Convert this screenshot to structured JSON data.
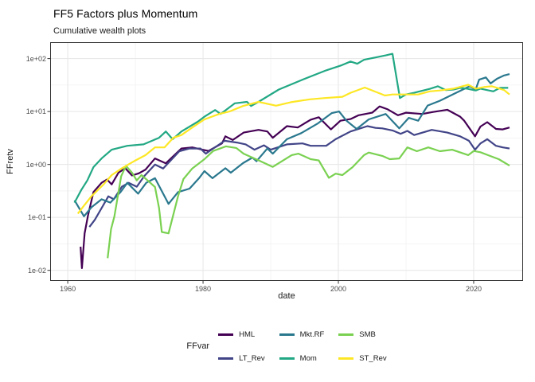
{
  "header": {
    "title": "FF5 Factors plus Momentum",
    "subtitle": "Cumulative wealth plots"
  },
  "chart_data": {
    "type": "line",
    "title": "FF5 Factors plus Momentum",
    "subtitle": "Cumulative wealth plots",
    "xlabel": "date",
    "ylabel": "FFretv",
    "legend_title": "FFvar",
    "legend_position": "bottom",
    "grid": true,
    "x_axis": {
      "range": [
        1957.4,
        2027.3
      ],
      "major_ticks": [
        1960,
        1980,
        2000,
        2020
      ],
      "minor_ticks": [
        1970,
        1990,
        2010
      ],
      "tick_labels": [
        "1960",
        "1980",
        "2000",
        "2020"
      ]
    },
    "y_axis": {
      "scale": "log10",
      "range_log10": [
        -2.2,
        2.31
      ],
      "major_ticks": [
        0.01,
        0.1,
        1,
        10,
        100
      ],
      "minor_ticks": [
        0.0316,
        0.316,
        3.162,
        31.62
      ],
      "tick_labels": [
        "1e-02",
        "1e-01",
        "1e+00",
        "1e+01",
        "1e+02"
      ]
    },
    "style": {
      "panel_border": "#333333",
      "grid_major": "#e6e6e6",
      "grid_minor": "#f2f2f2",
      "tick_mark": "#333333",
      "line_width": 2.2
    },
    "series": [
      {
        "name": "HML",
        "color": "#440154",
        "points": [
          [
            1961.9,
            0.028
          ],
          [
            1962.1,
            0.011
          ],
          [
            1962.5,
            0.05
          ],
          [
            1963.0,
            0.11
          ],
          [
            1963.8,
            0.3
          ],
          [
            1965.0,
            0.45
          ],
          [
            1965.8,
            0.52
          ],
          [
            1966.5,
            0.42
          ],
          [
            1967.5,
            0.7
          ],
          [
            1968.5,
            0.85
          ],
          [
            1969.5,
            0.62
          ],
          [
            1970.5,
            0.68
          ],
          [
            1971.5,
            0.8
          ],
          [
            1972.9,
            1.3
          ],
          [
            1974.5,
            1.05
          ],
          [
            1976.8,
            2.0
          ],
          [
            1978.4,
            2.1
          ],
          [
            1980.8,
            1.8
          ],
          [
            1982.8,
            2.5
          ],
          [
            1983.3,
            3.4
          ],
          [
            1984.4,
            2.9
          ],
          [
            1986.0,
            4.0
          ],
          [
            1988.2,
            4.5
          ],
          [
            1989.5,
            4.2
          ],
          [
            1990.3,
            3.2
          ],
          [
            1992.4,
            5.3
          ],
          [
            1994.0,
            5.0
          ],
          [
            1995.9,
            7.0
          ],
          [
            1997.1,
            7.8
          ],
          [
            1998.9,
            4.6
          ],
          [
            2000.3,
            6.7
          ],
          [
            2001.8,
            7.2
          ],
          [
            2003.0,
            8.5
          ],
          [
            2005.0,
            9.5
          ],
          [
            2006.1,
            12.5
          ],
          [
            2007.3,
            11.0
          ],
          [
            2008.8,
            8.5
          ],
          [
            2010.0,
            9.5
          ],
          [
            2012.4,
            9.0
          ],
          [
            2014.0,
            9.8
          ],
          [
            2016.1,
            10.8
          ],
          [
            2018.0,
            8.0
          ],
          [
            2018.6,
            6.7
          ],
          [
            2020.2,
            3.4
          ],
          [
            2021.0,
            5.2
          ],
          [
            2022.0,
            6.3
          ],
          [
            2023.3,
            4.7
          ],
          [
            2024.3,
            4.6
          ],
          [
            2025.3,
            5.0
          ]
        ]
      },
      {
        "name": "LT_Rev",
        "color": "#414487",
        "points": [
          [
            1963.2,
            0.066
          ],
          [
            1964.0,
            0.09
          ],
          [
            1965.0,
            0.15
          ],
          [
            1966.0,
            0.25
          ],
          [
            1966.8,
            0.22
          ],
          [
            1968.0,
            0.38
          ],
          [
            1969.0,
            0.45
          ],
          [
            1970.2,
            0.38
          ],
          [
            1971.3,
            0.6
          ],
          [
            1972.9,
            1.0
          ],
          [
            1974.1,
            0.84
          ],
          [
            1976.5,
            1.78
          ],
          [
            1978.0,
            2.0
          ],
          [
            1979.6,
            2.0
          ],
          [
            1980.4,
            1.6
          ],
          [
            1981.5,
            2.0
          ],
          [
            1983.2,
            2.8
          ],
          [
            1985.0,
            2.6
          ],
          [
            1986.3,
            2.4
          ],
          [
            1987.6,
            1.9
          ],
          [
            1989.0,
            2.3
          ],
          [
            1990.0,
            1.9
          ],
          [
            1991.5,
            2.2
          ],
          [
            1992.4,
            2.4
          ],
          [
            1994.7,
            2.5
          ],
          [
            1995.9,
            2.25
          ],
          [
            1998.2,
            2.25
          ],
          [
            1999.6,
            3.0
          ],
          [
            2001.8,
            4.2
          ],
          [
            2004.3,
            5.3
          ],
          [
            2005.5,
            4.9
          ],
          [
            2006.5,
            4.8
          ],
          [
            2008.0,
            4.4
          ],
          [
            2009.2,
            3.8
          ],
          [
            2010.2,
            4.3
          ],
          [
            2011.2,
            3.6
          ],
          [
            2013.8,
            4.5
          ],
          [
            2016.1,
            4.0
          ],
          [
            2018.0,
            3.4
          ],
          [
            2019.3,
            2.8
          ],
          [
            2020.2,
            1.9
          ],
          [
            2021.0,
            2.5
          ],
          [
            2022.0,
            3.0
          ],
          [
            2023.3,
            2.25
          ],
          [
            2024.3,
            2.1
          ],
          [
            2025.3,
            2.0
          ]
        ]
      },
      {
        "name": "Mkt.RF",
        "color": "#2a788e",
        "points": [
          [
            1961.0,
            0.21
          ],
          [
            1962.4,
            0.105
          ],
          [
            1963.5,
            0.155
          ],
          [
            1965.0,
            0.22
          ],
          [
            1966.3,
            0.19
          ],
          [
            1967.8,
            0.3
          ],
          [
            1968.8,
            0.45
          ],
          [
            1970.4,
            0.28
          ],
          [
            1971.6,
            0.45
          ],
          [
            1972.9,
            0.55
          ],
          [
            1974.9,
            0.18
          ],
          [
            1976.3,
            0.3
          ],
          [
            1978.0,
            0.35
          ],
          [
            1979.4,
            0.55
          ],
          [
            1980.2,
            0.75
          ],
          [
            1981.4,
            0.55
          ],
          [
            1983.3,
            0.85
          ],
          [
            1984.1,
            0.7
          ],
          [
            1985.9,
            1.06
          ],
          [
            1987.3,
            1.35
          ],
          [
            1987.9,
            1.15
          ],
          [
            1989.5,
            2.0
          ],
          [
            1990.3,
            1.6
          ],
          [
            1991.5,
            2.3
          ],
          [
            1992.4,
            3.0
          ],
          [
            1994.5,
            3.9
          ],
          [
            1997.0,
            6.0
          ],
          [
            1999.0,
            9.3
          ],
          [
            2000.1,
            10.0
          ],
          [
            2001.2,
            6.7
          ],
          [
            2002.7,
            4.7
          ],
          [
            2004.5,
            7.1
          ],
          [
            2007.0,
            9.0
          ],
          [
            2009.0,
            4.8
          ],
          [
            2010.4,
            7.6
          ],
          [
            2011.8,
            6.7
          ],
          [
            2013.2,
            13.0
          ],
          [
            2015.0,
            16.0
          ],
          [
            2017.4,
            22.6
          ],
          [
            2019.4,
            30.0
          ],
          [
            2020.3,
            26.0
          ],
          [
            2020.8,
            40.0
          ],
          [
            2021.8,
            44.0
          ],
          [
            2022.5,
            34.0
          ],
          [
            2023.5,
            42.0
          ],
          [
            2024.5,
            48.0
          ],
          [
            2025.3,
            51.0
          ]
        ]
      },
      {
        "name": "Mom",
        "color": "#22a884",
        "points": [
          [
            1961.0,
            0.19
          ],
          [
            1962.0,
            0.33
          ],
          [
            1962.9,
            0.5
          ],
          [
            1963.8,
            0.89
          ],
          [
            1965.0,
            1.3
          ],
          [
            1966.5,
            1.9
          ],
          [
            1968.8,
            2.25
          ],
          [
            1971.2,
            2.4
          ],
          [
            1973.5,
            3.2
          ],
          [
            1974.5,
            4.2
          ],
          [
            1975.5,
            3.0
          ],
          [
            1976.8,
            4.2
          ],
          [
            1979.2,
            6.4
          ],
          [
            1980.2,
            8.0
          ],
          [
            1981.8,
            10.7
          ],
          [
            1982.6,
            9.0
          ],
          [
            1984.7,
            14.3
          ],
          [
            1986.5,
            15.2
          ],
          [
            1987.1,
            12.7
          ],
          [
            1988.2,
            15.2
          ],
          [
            1991.2,
            26.0
          ],
          [
            1994.7,
            40.0
          ],
          [
            1998.2,
            60.0
          ],
          [
            2000.5,
            75.0
          ],
          [
            2001.8,
            88.0
          ],
          [
            2002.8,
            80.0
          ],
          [
            2003.8,
            95.0
          ],
          [
            2005.5,
            105.0
          ],
          [
            2007.0,
            115.0
          ],
          [
            2008.0,
            123.0
          ],
          [
            2009.1,
            18.0
          ],
          [
            2010.0,
            21.0
          ],
          [
            2011.2,
            22.6
          ],
          [
            2013.5,
            26.8
          ],
          [
            2014.7,
            30.0
          ],
          [
            2015.9,
            25.4
          ],
          [
            2017.0,
            26.0
          ],
          [
            2018.0,
            28.0
          ],
          [
            2019.0,
            27.0
          ],
          [
            2020.3,
            25.0
          ],
          [
            2021.0,
            27.0
          ],
          [
            2022.9,
            24.0
          ],
          [
            2023.9,
            28.0
          ],
          [
            2025.1,
            28.0
          ]
        ]
      },
      {
        "name": "SMB",
        "color": "#7ad151",
        "points": [
          [
            1965.9,
            0.017
          ],
          [
            1966.4,
            0.06
          ],
          [
            1966.9,
            0.105
          ],
          [
            1967.9,
            0.6
          ],
          [
            1968.6,
            0.94
          ],
          [
            1969.5,
            0.7
          ],
          [
            1970.2,
            0.5
          ],
          [
            1970.9,
            0.63
          ],
          [
            1971.8,
            0.5
          ],
          [
            1972.9,
            0.375
          ],
          [
            1973.5,
            0.15
          ],
          [
            1973.9,
            0.053
          ],
          [
            1974.9,
            0.05
          ],
          [
            1976.3,
            0.25
          ],
          [
            1977.1,
            0.53
          ],
          [
            1978.4,
            0.84
          ],
          [
            1980.2,
            1.26
          ],
          [
            1981.5,
            1.8
          ],
          [
            1983.4,
            2.2
          ],
          [
            1984.9,
            2.05
          ],
          [
            1986.0,
            1.6
          ],
          [
            1988.5,
            1.15
          ],
          [
            1990.3,
            0.9
          ],
          [
            1993.1,
            1.5
          ],
          [
            1994.1,
            1.6
          ],
          [
            1995.9,
            1.26
          ],
          [
            1997.1,
            1.19
          ],
          [
            1998.6,
            0.56
          ],
          [
            1999.6,
            0.67
          ],
          [
            2000.6,
            0.63
          ],
          [
            2002.1,
            0.89
          ],
          [
            2003.8,
            1.5
          ],
          [
            2004.5,
            1.68
          ],
          [
            2006.5,
            1.45
          ],
          [
            2007.6,
            1.26
          ],
          [
            2009.0,
            1.3
          ],
          [
            2010.2,
            2.1
          ],
          [
            2011.6,
            1.78
          ],
          [
            2013.3,
            2.1
          ],
          [
            2015.0,
            1.78
          ],
          [
            2016.8,
            1.9
          ],
          [
            2019.2,
            1.5
          ],
          [
            2020.0,
            1.8
          ],
          [
            2021.0,
            1.7
          ],
          [
            2022.1,
            1.5
          ],
          [
            2023.7,
            1.26
          ],
          [
            2025.3,
            0.95
          ]
        ]
      },
      {
        "name": "ST_Rev",
        "color": "#fde725",
        "points": [
          [
            1961.5,
            0.118
          ],
          [
            1962.3,
            0.16
          ],
          [
            1963.5,
            0.25
          ],
          [
            1965.3,
            0.42
          ],
          [
            1966.5,
            0.63
          ],
          [
            1968.0,
            0.85
          ],
          [
            1970.0,
            1.19
          ],
          [
            1971.5,
            1.5
          ],
          [
            1972.9,
            2.1
          ],
          [
            1974.3,
            2.1
          ],
          [
            1975.6,
            3.2
          ],
          [
            1976.8,
            3.6
          ],
          [
            1978.4,
            5.0
          ],
          [
            1980.2,
            7.1
          ],
          [
            1982.4,
            9.0
          ],
          [
            1983.9,
            10.0
          ],
          [
            1985.9,
            12.7
          ],
          [
            1988.2,
            15.2
          ],
          [
            1990.8,
            12.9
          ],
          [
            1993.0,
            15.0
          ],
          [
            1995.8,
            17.0
          ],
          [
            1998.0,
            18.0
          ],
          [
            2000.6,
            19.0
          ],
          [
            2001.8,
            22.6
          ],
          [
            2003.9,
            28.4
          ],
          [
            2006.9,
            20.1
          ],
          [
            2008.0,
            21.0
          ],
          [
            2009.5,
            21.0
          ],
          [
            2011.8,
            21.0
          ],
          [
            2013.5,
            24.0
          ],
          [
            2015.0,
            25.0
          ],
          [
            2017.0,
            27.0
          ],
          [
            2019.2,
            32.0
          ],
          [
            2020.3,
            27.0
          ],
          [
            2021.5,
            29.0
          ],
          [
            2022.7,
            30.0
          ],
          [
            2023.5,
            28.0
          ],
          [
            2024.5,
            25.4
          ],
          [
            2025.3,
            21.0
          ]
        ]
      }
    ]
  }
}
